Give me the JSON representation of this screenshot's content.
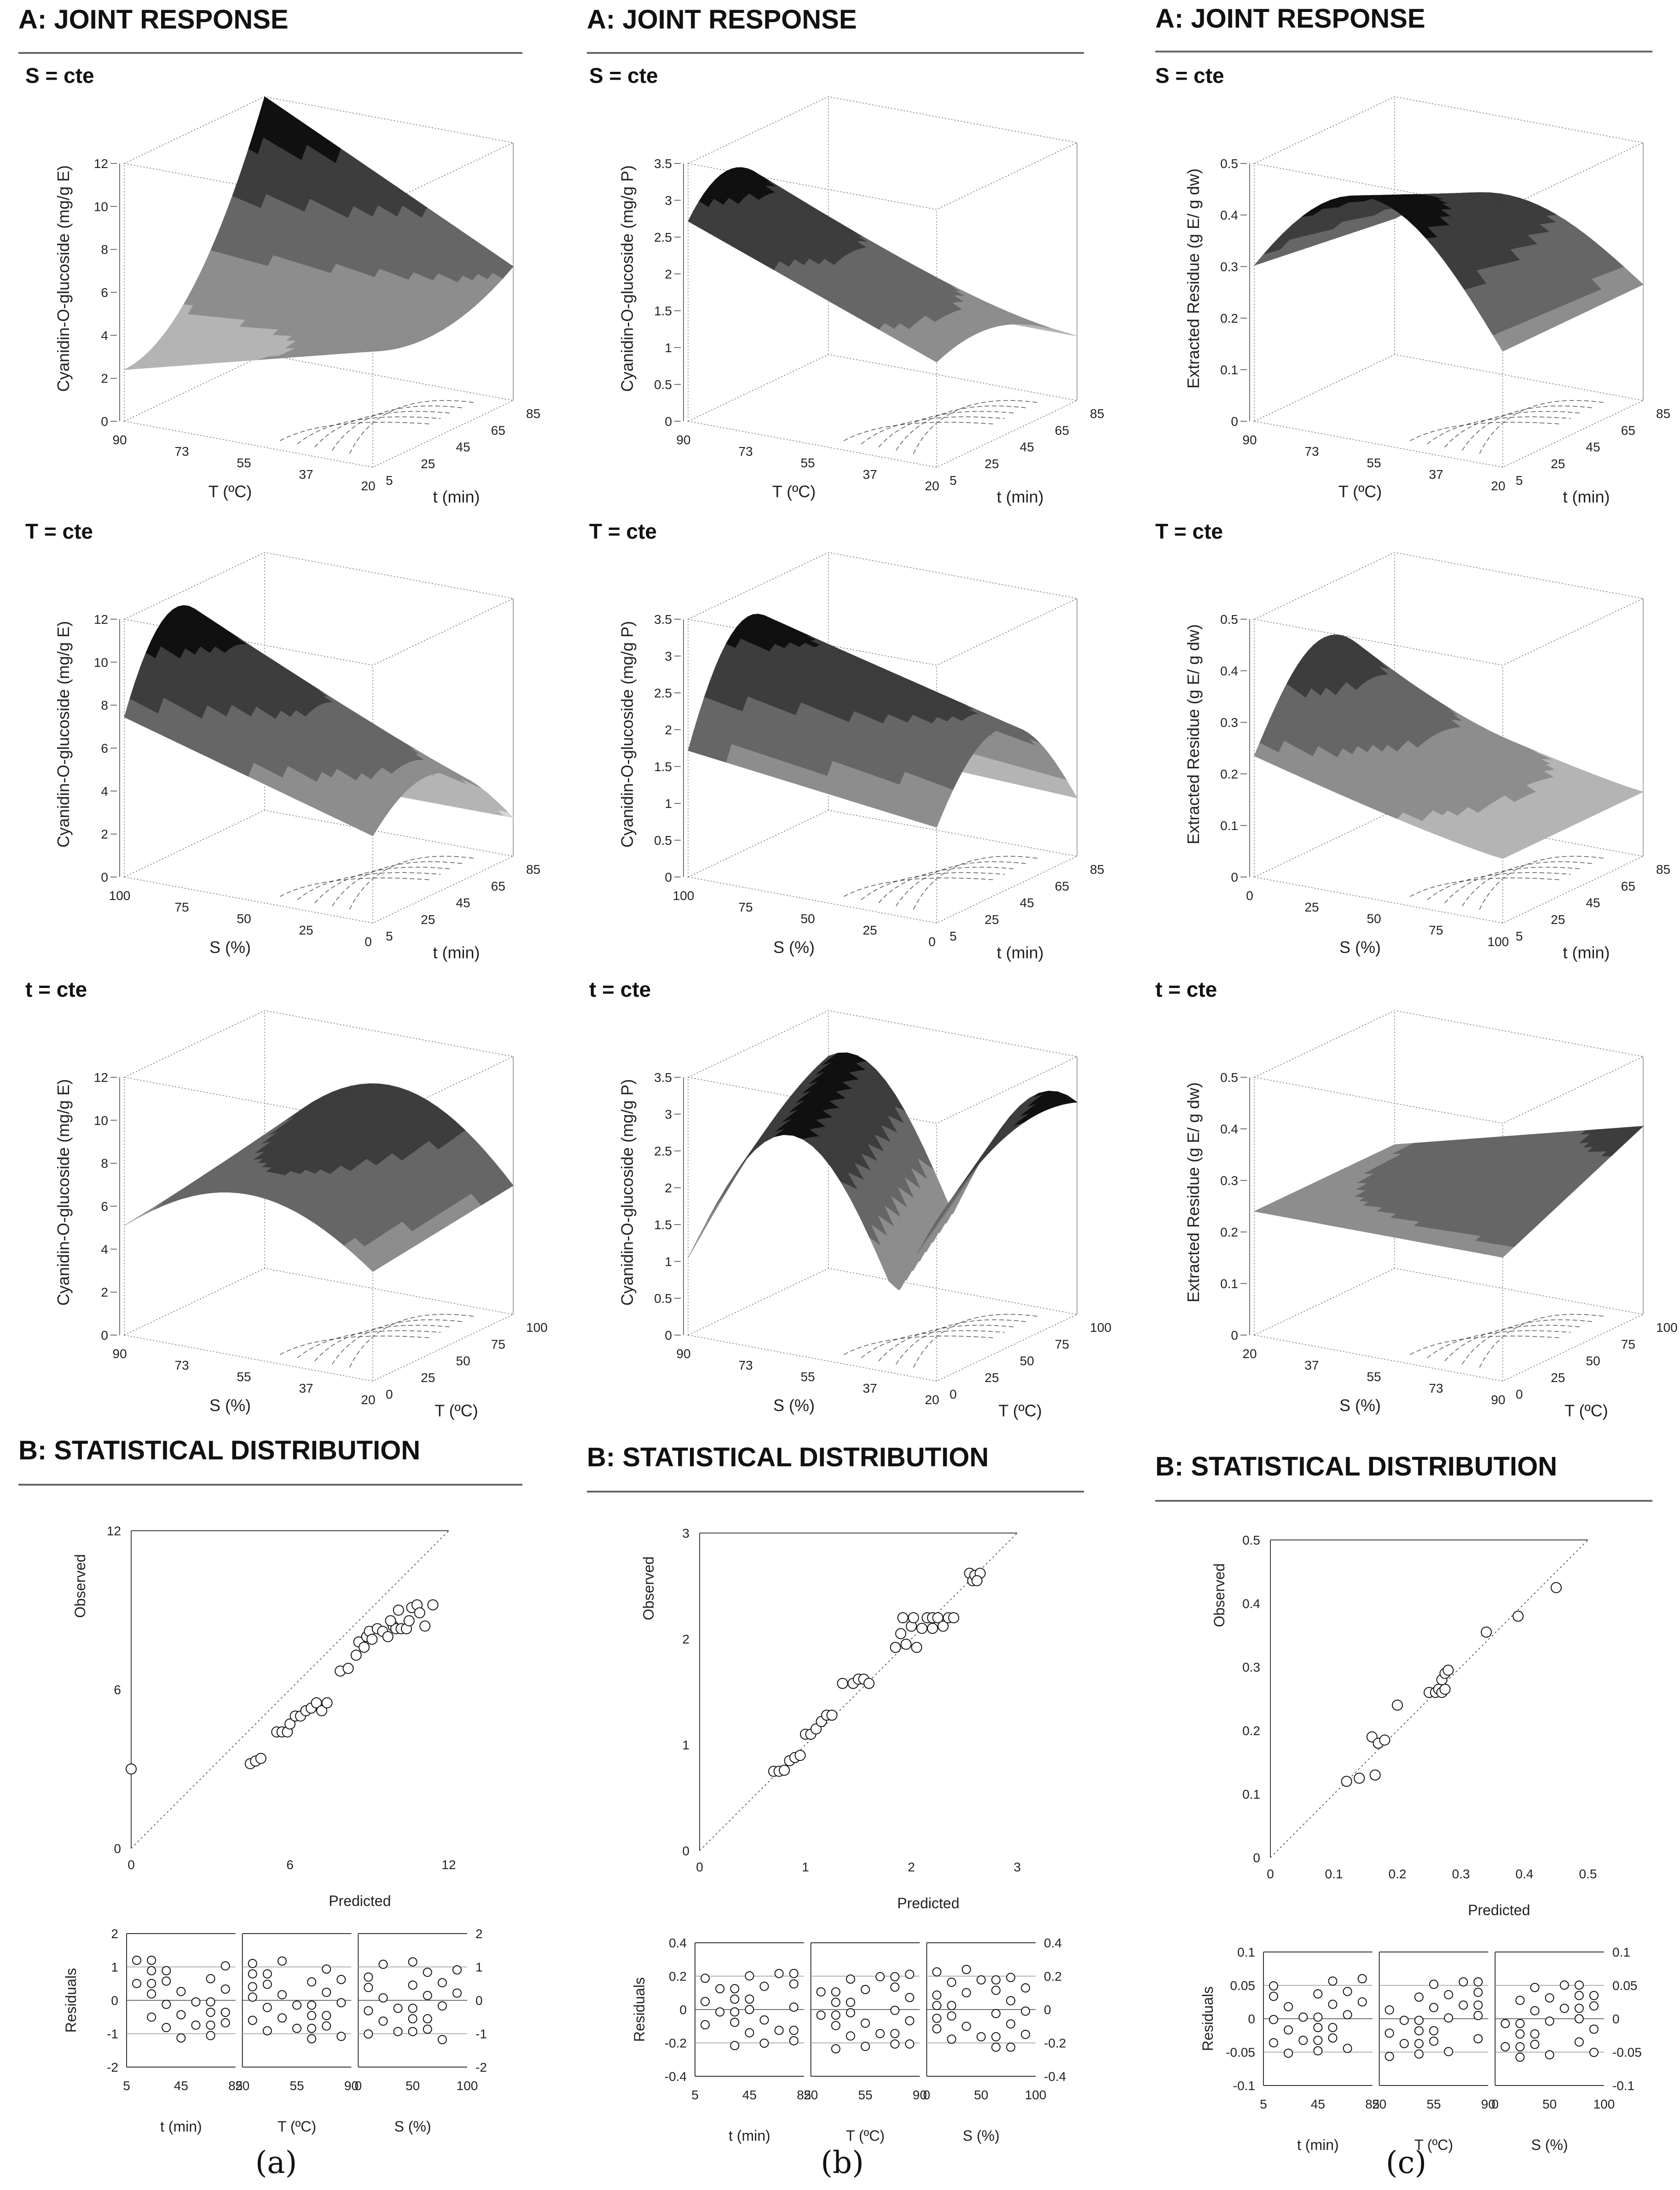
{
  "section_a_title": "A: JOINT RESPONSE",
  "section_b_title": "B: STATISTICAL DISTRIBUTION",
  "observed_label": "Observed",
  "predicted_label": "Predicted",
  "residuals_label": "Residuals",
  "panel_labels": [
    "(a)",
    "(b)",
    "(c)"
  ],
  "colors": {
    "dark": "#111111",
    "mid": "#555555",
    "light": "#bbbbbb"
  },
  "chart_data": [
    {
      "type": "surface3d",
      "panel": "a",
      "condition": "S = cte",
      "zlabel": "Cyanidin-O-glucoside (mg/g E)",
      "z_ticks": [
        "0",
        "2",
        "4",
        "6",
        "8",
        "10",
        "12"
      ],
      "x_axis": {
        "label": "T (ºC)",
        "ticks": [
          "90",
          "73",
          "55",
          "37",
          "20"
        ]
      },
      "y_axis": {
        "label": "t (min)",
        "ticks": [
          "5",
          "25",
          "45",
          "65",
          "85"
        ]
      }
    },
    {
      "type": "surface3d",
      "panel": "a",
      "condition": "T = cte",
      "zlabel": "Cyanidin-O-glucoside (mg/g E)",
      "z_ticks": [
        "0",
        "2",
        "4",
        "6",
        "8",
        "10",
        "12"
      ],
      "x_axis": {
        "label": "S (%)",
        "ticks": [
          "100",
          "75",
          "50",
          "25",
          "0"
        ]
      },
      "y_axis": {
        "label": "t (min)",
        "ticks": [
          "5",
          "25",
          "45",
          "65",
          "85"
        ]
      }
    },
    {
      "type": "surface3d",
      "panel": "a",
      "condition": "t = cte",
      "zlabel": "Cyanidin-O-glucoside (mg/g E)",
      "z_ticks": [
        "0",
        "2",
        "4",
        "6",
        "8",
        "10",
        "12"
      ],
      "x_axis": {
        "label": "S (%)",
        "ticks": [
          "90",
          "73",
          "55",
          "37",
          "20"
        ]
      },
      "y_axis": {
        "label": "T (ºC)",
        "ticks": [
          "0",
          "25",
          "50",
          "75",
          "100"
        ]
      }
    },
    {
      "type": "surface3d",
      "panel": "b",
      "condition": "S = cte",
      "zlabel": "Cyanidin-O-glucoside (mg/g P)",
      "z_ticks": [
        "0",
        "0.5",
        "1",
        "1.5",
        "2",
        "2.5",
        "3",
        "3.5"
      ],
      "x_axis": {
        "label": "T (ºC)",
        "ticks": [
          "90",
          "73",
          "55",
          "37",
          "20"
        ]
      },
      "y_axis": {
        "label": "t (min)",
        "ticks": [
          "5",
          "25",
          "45",
          "65",
          "85"
        ]
      }
    },
    {
      "type": "surface3d",
      "panel": "b",
      "condition": "T = cte",
      "zlabel": "Cyanidin-O-glucoside (mg/g P)",
      "z_ticks": [
        "0",
        "0.5",
        "1",
        "1.5",
        "2",
        "2.5",
        "3",
        "3.5"
      ],
      "x_axis": {
        "label": "S (%)",
        "ticks": [
          "100",
          "75",
          "50",
          "25",
          "0"
        ]
      },
      "y_axis": {
        "label": "t (min)",
        "ticks": [
          "5",
          "25",
          "45",
          "65",
          "85"
        ]
      }
    },
    {
      "type": "surface3d",
      "panel": "b",
      "condition": "t = cte",
      "zlabel": "Cyanidin-O-glucoside (mg/g P)",
      "z_ticks": [
        "0",
        "0.5",
        "1",
        "1.5",
        "2",
        "2.5",
        "3",
        "3.5"
      ],
      "x_axis": {
        "label": "S (%)",
        "ticks": [
          "90",
          "73",
          "55",
          "37",
          "20"
        ]
      },
      "y_axis": {
        "label": "T (ºC)",
        "ticks": [
          "0",
          "25",
          "50",
          "75",
          "100"
        ]
      }
    },
    {
      "type": "surface3d",
      "panel": "c",
      "condition": "S = cte",
      "zlabel": "Extracted Residue (g E/ g dw)",
      "z_ticks": [
        "0",
        "0.1",
        "0.2",
        "0.3",
        "0.4",
        "0.5"
      ],
      "x_axis": {
        "label": "T (ºC)",
        "ticks": [
          "90",
          "73",
          "55",
          "37",
          "20"
        ]
      },
      "y_axis": {
        "label": "t (min)",
        "ticks": [
          "5",
          "25",
          "45",
          "65",
          "85"
        ]
      }
    },
    {
      "type": "surface3d",
      "panel": "c",
      "condition": "T = cte",
      "zlabel": "Extracted Residue (g E/ g dw)",
      "z_ticks": [
        "0",
        "0.1",
        "0.2",
        "0.3",
        "0.4",
        "0.5"
      ],
      "x_axis": {
        "label": "S (%)",
        "ticks": [
          "0",
          "25",
          "50",
          "75",
          "100"
        ]
      },
      "y_axis": {
        "label": "t (min)",
        "ticks": [
          "5",
          "25",
          "45",
          "65",
          "85"
        ]
      }
    },
    {
      "type": "surface3d",
      "panel": "c",
      "condition": "t = cte",
      "zlabel": "Extracted Residue (g E/ g dw)",
      "z_ticks": [
        "0",
        "0.1",
        "0.2",
        "0.3",
        "0.4",
        "0.5"
      ],
      "x_axis": {
        "label": "S (%)",
        "ticks": [
          "20",
          "37",
          "55",
          "73",
          "90"
        ]
      },
      "y_axis": {
        "label": "T (ºC)",
        "ticks": [
          "0",
          "25",
          "50",
          "75",
          "100"
        ]
      }
    },
    {
      "type": "scatter",
      "panel": "a",
      "xlabel": "Predicted",
      "ylabel": "Observed",
      "xlim": [
        0,
        12
      ],
      "ylim": [
        0,
        12
      ],
      "x_ticks": [
        "0",
        "6",
        "12"
      ],
      "y_ticks": [
        "0",
        "6",
        "12"
      ],
      "points": [
        [
          0,
          3
        ],
        [
          4.5,
          3.2
        ],
        [
          4.7,
          3.3
        ],
        [
          4.9,
          3.4
        ],
        [
          5.5,
          4.4
        ],
        [
          5.7,
          4.4
        ],
        [
          5.9,
          4.4
        ],
        [
          6,
          4.7
        ],
        [
          6.2,
          5
        ],
        [
          6.4,
          5
        ],
        [
          6.6,
          5.2
        ],
        [
          6.8,
          5.3
        ],
        [
          7,
          5.5
        ],
        [
          7.2,
          5.2
        ],
        [
          7.4,
          5.5
        ],
        [
          7.9,
          6.7
        ],
        [
          8.2,
          6.8
        ],
        [
          8.5,
          7.3
        ],
        [
          8.6,
          7.8
        ],
        [
          8.8,
          7.6
        ],
        [
          8.9,
          8
        ],
        [
          9,
          8.2
        ],
        [
          9.1,
          7.9
        ],
        [
          9.3,
          8.3
        ],
        [
          9.5,
          8.2
        ],
        [
          9.7,
          8
        ],
        [
          9.9,
          8.4
        ],
        [
          10,
          8.3
        ],
        [
          10.2,
          8.3
        ],
        [
          10.4,
          8.3
        ],
        [
          10.5,
          8.6
        ],
        [
          10.6,
          9.1
        ],
        [
          10.8,
          9.2
        ],
        [
          10.9,
          8.9
        ],
        [
          11.1,
          8.4
        ],
        [
          11.4,
          9.2
        ],
        [
          9.8,
          8.6
        ],
        [
          10.1,
          9
        ]
      ]
    },
    {
      "type": "scatter",
      "panel": "b",
      "xlabel": "Predicted",
      "ylabel": "Observed",
      "xlim": [
        0,
        3
      ],
      "ylim": [
        0,
        3
      ],
      "x_ticks": [
        "0",
        "1",
        "2",
        "3"
      ],
      "y_ticks": [
        "0",
        "1",
        "2",
        "3"
      ],
      "points": [
        [
          0.7,
          0.75
        ],
        [
          0.75,
          0.75
        ],
        [
          0.8,
          0.76
        ],
        [
          0.85,
          0.85
        ],
        [
          0.9,
          0.88
        ],
        [
          0.95,
          0.9
        ],
        [
          1,
          1.1
        ],
        [
          1.05,
          1.1
        ],
        [
          1.1,
          1.15
        ],
        [
          1.15,
          1.22
        ],
        [
          1.2,
          1.28
        ],
        [
          1.25,
          1.28
        ],
        [
          1.35,
          1.58
        ],
        [
          1.45,
          1.58
        ],
        [
          1.5,
          1.62
        ],
        [
          1.55,
          1.62
        ],
        [
          1.6,
          1.58
        ],
        [
          1.85,
          1.92
        ],
        [
          1.9,
          2.05
        ],
        [
          1.92,
          2.2
        ],
        [
          1.95,
          1.95
        ],
        [
          2,
          2.12
        ],
        [
          2.02,
          2.2
        ],
        [
          2.05,
          1.92
        ],
        [
          2.1,
          2.1
        ],
        [
          2.15,
          2.2
        ],
        [
          2.2,
          2.2
        ],
        [
          2.25,
          2.2
        ],
        [
          2.3,
          2.12
        ],
        [
          2.35,
          2.2
        ],
        [
          2.4,
          2.2
        ],
        [
          2.2,
          2.1
        ],
        [
          2.55,
          2.62
        ],
        [
          2.58,
          2.55
        ],
        [
          2.6,
          2.6
        ],
        [
          2.65,
          2.62
        ],
        [
          2.62,
          2.55
        ]
      ]
    },
    {
      "type": "scatter",
      "panel": "c",
      "xlabel": "Predicted",
      "ylabel": "Observed",
      "xlim": [
        0,
        0.5
      ],
      "ylim": [
        0,
        0.5
      ],
      "x_ticks": [
        "0",
        "0.1",
        "0.2",
        "0.3",
        "0.4",
        "0.5"
      ],
      "y_ticks": [
        "0",
        "0.1",
        "0.2",
        "0.3",
        "0.4",
        "0.5"
      ],
      "points": [
        [
          0.12,
          0.12
        ],
        [
          0.14,
          0.125
        ],
        [
          0.16,
          0.19
        ],
        [
          0.165,
          0.13
        ],
        [
          0.17,
          0.18
        ],
        [
          0.18,
          0.185
        ],
        [
          0.2,
          0.24
        ],
        [
          0.25,
          0.26
        ],
        [
          0.26,
          0.26
        ],
        [
          0.265,
          0.265
        ],
        [
          0.27,
          0.26
        ],
        [
          0.275,
          0.265
        ],
        [
          0.27,
          0.28
        ],
        [
          0.275,
          0.29
        ],
        [
          0.28,
          0.295
        ],
        [
          0.34,
          0.355
        ],
        [
          0.39,
          0.38
        ],
        [
          0.45,
          0.425
        ]
      ]
    },
    {
      "type": "residuals",
      "panel": "a",
      "ylabel": "Residuals",
      "ylim": [
        -2,
        2
      ],
      "y_ticks": [
        "2",
        "1",
        "0",
        "-1",
        "-2"
      ],
      "groups": [
        {
          "label": "t (min)",
          "ticks": [
            "5",
            "45",
            "85"
          ]
        },
        {
          "label": "T (ºC)",
          "ticks": [
            "20",
            "55",
            "90"
          ]
        },
        {
          "label": "S (%)",
          "ticks": [
            "0",
            "50",
            "100"
          ]
        }
      ]
    },
    {
      "type": "residuals",
      "panel": "b",
      "ylabel": "Residuals",
      "ylim": [
        -0.4,
        0.4
      ],
      "y_ticks": [
        "0.4",
        "0.2",
        "0",
        "-0.2",
        "-0.4"
      ],
      "groups": [
        {
          "label": "t (min)",
          "ticks": [
            "5",
            "45",
            "85"
          ]
        },
        {
          "label": "T (ºC)",
          "ticks": [
            "20",
            "55",
            "90"
          ]
        },
        {
          "label": "S (%)",
          "ticks": [
            "0",
            "50",
            "100"
          ]
        }
      ]
    },
    {
      "type": "residuals",
      "panel": "c",
      "ylabel": "Residuals",
      "ylim": [
        -0.1,
        0.1
      ],
      "y_ticks": [
        "0.1",
        "0.05",
        "0",
        "-0.05",
        "-0.1"
      ],
      "groups": [
        {
          "label": "t (min)",
          "ticks": [
            "5",
            "45",
            "85"
          ]
        },
        {
          "label": "T (ºC)",
          "ticks": [
            "20",
            "55",
            "90"
          ]
        },
        {
          "label": "S (%)",
          "ticks": [
            "0",
            "50",
            "100"
          ]
        }
      ]
    }
  ]
}
